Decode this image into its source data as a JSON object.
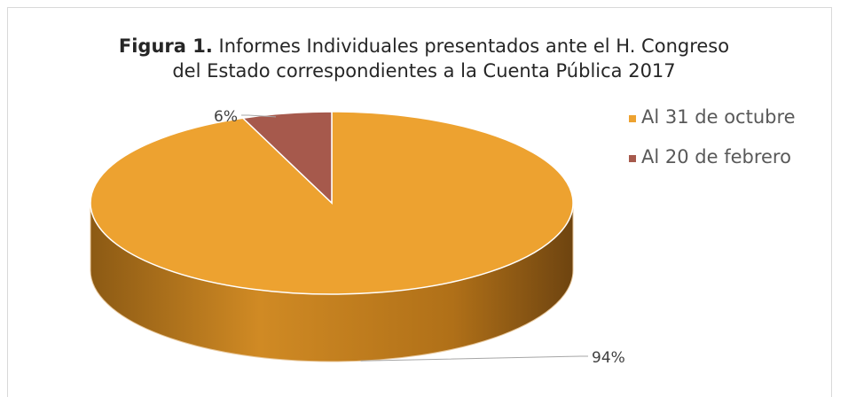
{
  "chart_data": {
    "type": "pie",
    "title_bold": "Figura 1.",
    "title": "Informes Individuales presentados ante el H. Congreso",
    "title_line2": "del Estado correspondientes a la Cuenta Pública 2017",
    "categories": [
      "Al 31 de octubre",
      "Al 20 de febrero"
    ],
    "values": [
      94,
      6
    ],
    "data_labels": [
      "94%",
      "6%"
    ],
    "colors": [
      "#eda230",
      "#a6594c"
    ],
    "style": "3d",
    "legend_position": "right"
  }
}
